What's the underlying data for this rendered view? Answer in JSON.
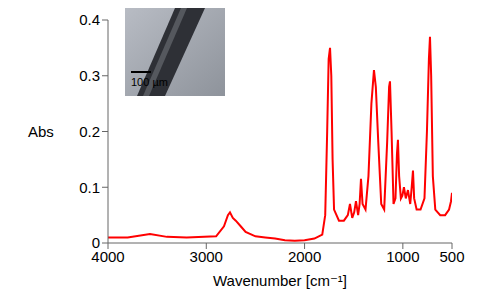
{
  "chart_data": {
    "type": "line",
    "x_label": "Wavenumber [cm⁻¹]",
    "y_label": "Abs",
    "annotations": [
      "100 µm"
    ],
    "color": "#ff0000",
    "xlim": [
      4000,
      500
    ],
    "xticks": [
      4000,
      3000,
      2000,
      1000,
      500
    ],
    "ylim": [
      0,
      0.4
    ],
    "yticks": [
      0,
      0.1,
      0.2,
      0.3,
      0.4
    ],
    "grid": false,
    "x": [
      4000,
      3800,
      3573,
      3400,
      3200,
      2900,
      2820,
      2780,
      2759,
      2730,
      2700,
      2650,
      2600,
      2500,
      2400,
      2300,
      2200,
      2100,
      2000,
      1900,
      1820,
      1790,
      1770,
      1755,
      1741,
      1728,
      1715,
      1700,
      1650,
      1600,
      1560,
      1538,
      1515,
      1495,
      1477,
      1455,
      1440,
      1426,
      1410,
      1380,
      1350,
      1320,
      1294,
      1275,
      1250,
      1220,
      1190,
      1160,
      1140,
      1131,
      1115,
      1095,
      1075,
      1060,
      1050,
      1038,
      1020,
      1005,
      989,
      970,
      948,
      925,
      910,
      897,
      885,
      860,
      820,
      780,
      755,
      735,
      724,
      712,
      695,
      670,
      620,
      570,
      530,
      510,
      500
    ],
    "values": [
      0.01,
      0.01,
      0.016,
      0.011,
      0.01,
      0.012,
      0.03,
      0.05,
      0.055,
      0.045,
      0.04,
      0.03,
      0.02,
      0.012,
      0.01,
      0.008,
      0.005,
      0.004,
      0.005,
      0.008,
      0.015,
      0.05,
      0.2,
      0.33,
      0.35,
      0.3,
      0.15,
      0.06,
      0.04,
      0.04,
      0.05,
      0.07,
      0.045,
      0.055,
      0.075,
      0.05,
      0.07,
      0.115,
      0.07,
      0.06,
      0.12,
      0.25,
      0.31,
      0.28,
      0.18,
      0.07,
      0.06,
      0.18,
      0.28,
      0.29,
      0.2,
      0.07,
      0.08,
      0.16,
      0.185,
      0.12,
      0.08,
      0.085,
      0.1,
      0.08,
      0.095,
      0.07,
      0.1,
      0.13,
      0.08,
      0.06,
      0.06,
      0.08,
      0.2,
      0.33,
      0.37,
      0.3,
      0.12,
      0.06,
      0.05,
      0.05,
      0.06,
      0.075,
      0.09
    ]
  }
}
